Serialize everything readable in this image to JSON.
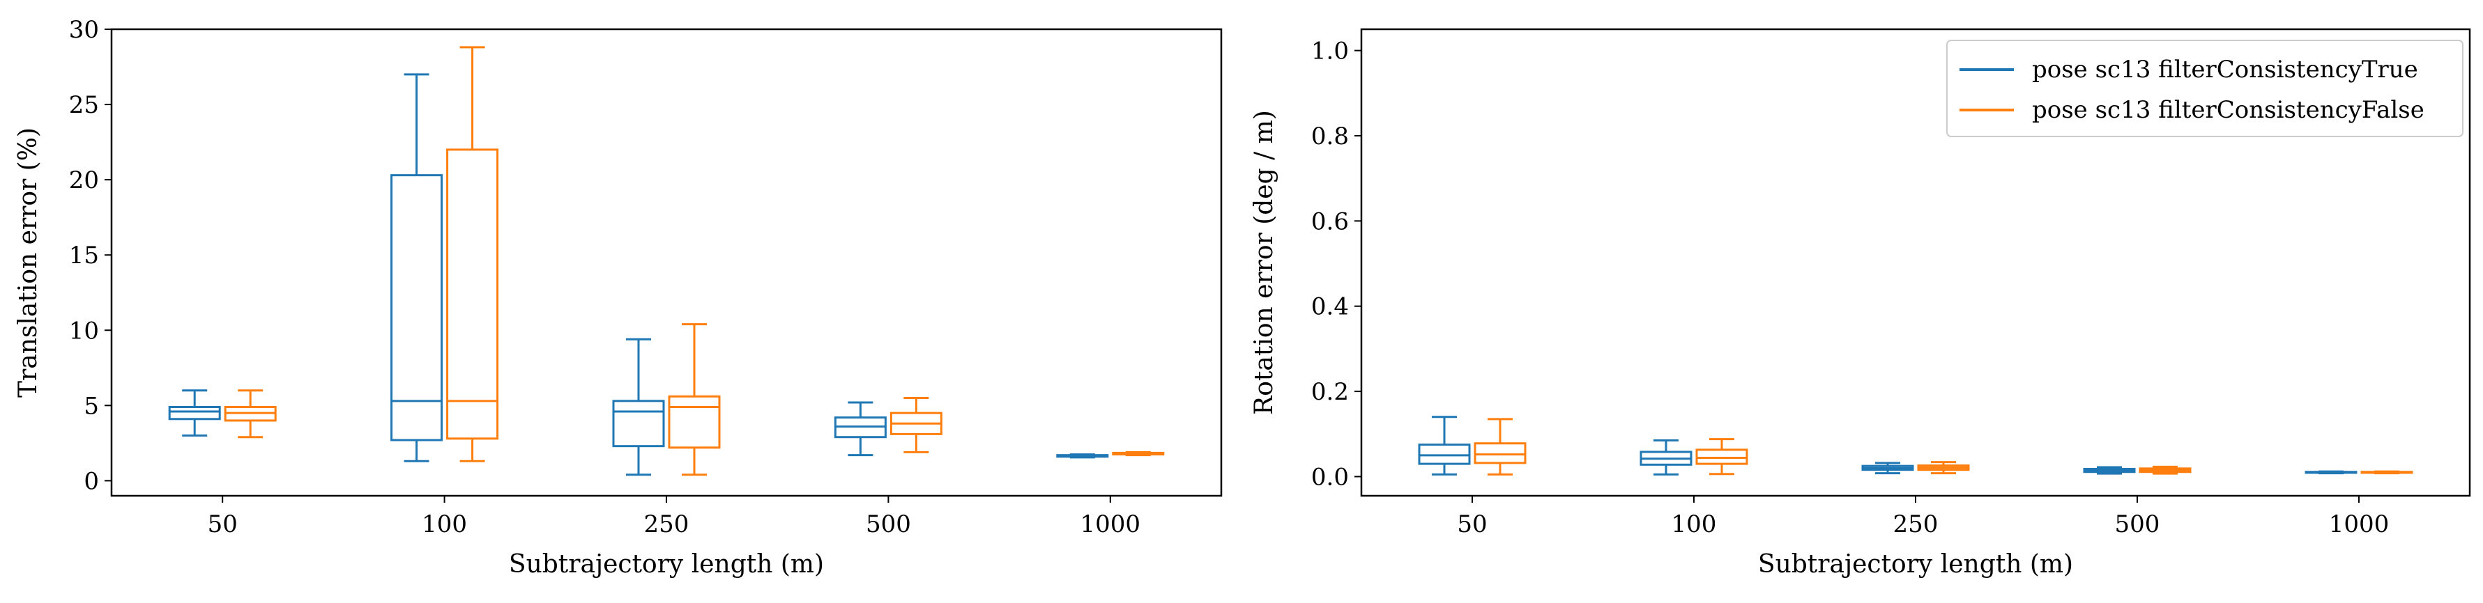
{
  "figure": {
    "background": "#ffffff"
  },
  "legend": {
    "placement": "top-right",
    "entries": [
      {
        "label": "pose sc13 filterConsistencyTrue",
        "color": "#1f77b4"
      },
      {
        "label": "pose sc13 filterConsistencyFalse",
        "color": "#ff7f0e"
      }
    ]
  },
  "chart_data": [
    {
      "type": "box",
      "title": "",
      "xlabel": "Subtrajectory length (m)",
      "ylabel": "Translation error (%)",
      "categories": [
        "50",
        "100",
        "250",
        "500",
        "1000"
      ],
      "ylim": [
        -1,
        30
      ],
      "yticks": [
        0,
        5,
        10,
        15,
        20,
        25,
        30
      ],
      "grid": false,
      "series": [
        {
          "name": "pose sc13 filterConsistencyTrue",
          "color": "#1f77b4",
          "boxes": [
            {
              "whislo": 3.0,
              "q1": 4.1,
              "med": 4.6,
              "q3": 4.9,
              "whishi": 6.0
            },
            {
              "whislo": 1.3,
              "q1": 2.7,
              "med": 5.3,
              "q3": 20.3,
              "whishi": 27.0
            },
            {
              "whislo": 0.4,
              "q1": 2.3,
              "med": 4.6,
              "q3": 5.3,
              "whishi": 9.4
            },
            {
              "whislo": 1.7,
              "q1": 2.9,
              "med": 3.6,
              "q3": 4.2,
              "whishi": 5.2
            },
            {
              "whislo": 1.55,
              "q1": 1.6,
              "med": 1.65,
              "q3": 1.7,
              "whishi": 1.75
            }
          ]
        },
        {
          "name": "pose sc13 filterConsistencyFalse",
          "color": "#ff7f0e",
          "boxes": [
            {
              "whislo": 2.9,
              "q1": 4.0,
              "med": 4.5,
              "q3": 4.9,
              "whishi": 6.0
            },
            {
              "whislo": 1.3,
              "q1": 2.8,
              "med": 5.3,
              "q3": 22.0,
              "whishi": 28.8
            },
            {
              "whislo": 0.4,
              "q1": 2.2,
              "med": 4.9,
              "q3": 5.6,
              "whishi": 10.4
            },
            {
              "whislo": 1.9,
              "q1": 3.1,
              "med": 3.8,
              "q3": 4.5,
              "whishi": 5.5
            },
            {
              "whislo": 1.7,
              "q1": 1.75,
              "med": 1.8,
              "q3": 1.85,
              "whishi": 1.9
            }
          ]
        }
      ]
    },
    {
      "type": "box",
      "title": "",
      "xlabel": "Subtrajectory length (m)",
      "ylabel": "Rotation error (deg / m)",
      "categories": [
        "50",
        "100",
        "250",
        "500",
        "1000"
      ],
      "ylim": [
        -0.045,
        1.05
      ],
      "yticks": [
        0.0,
        0.2,
        0.4,
        0.6,
        0.8,
        1.0
      ],
      "ytick_labels": [
        "0.0",
        "0.2",
        "0.4",
        "0.6",
        "0.8",
        "1.0"
      ],
      "grid": false,
      "series": [
        {
          "name": "pose sc13 filterConsistencyTrue",
          "color": "#1f77b4",
          "boxes": [
            {
              "whislo": 0.005,
              "q1": 0.03,
              "med": 0.05,
              "q3": 0.075,
              "whishi": 0.14
            },
            {
              "whislo": 0.005,
              "q1": 0.028,
              "med": 0.042,
              "q3": 0.058,
              "whishi": 0.085
            },
            {
              "whislo": 0.008,
              "q1": 0.016,
              "med": 0.02,
              "q3": 0.025,
              "whishi": 0.032
            },
            {
              "whislo": 0.007,
              "q1": 0.011,
              "med": 0.014,
              "q3": 0.018,
              "whishi": 0.022
            },
            {
              "whislo": 0.008,
              "q1": 0.009,
              "med": 0.01,
              "q3": 0.011,
              "whishi": 0.012
            }
          ]
        },
        {
          "name": "pose sc13 filterConsistencyFalse",
          "color": "#ff7f0e",
          "boxes": [
            {
              "whislo": 0.005,
              "q1": 0.032,
              "med": 0.052,
              "q3": 0.078,
              "whishi": 0.135
            },
            {
              "whislo": 0.006,
              "q1": 0.03,
              "med": 0.044,
              "q3": 0.063,
              "whishi": 0.088
            },
            {
              "whislo": 0.008,
              "q1": 0.016,
              "med": 0.021,
              "q3": 0.026,
              "whishi": 0.034
            },
            {
              "whislo": 0.007,
              "q1": 0.011,
              "med": 0.015,
              "q3": 0.019,
              "whishi": 0.023
            },
            {
              "whislo": 0.008,
              "q1": 0.009,
              "med": 0.01,
              "q3": 0.011,
              "whishi": 0.012
            }
          ]
        }
      ]
    }
  ]
}
